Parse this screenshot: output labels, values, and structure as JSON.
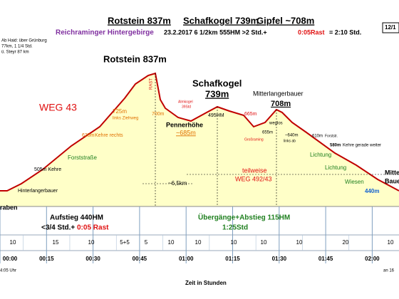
{
  "header": {
    "title_parts": [
      "Rotstein 837m",
      "Schafkogel 739m",
      "Gipfel ~708m"
    ],
    "region": "Reichraminger Hintergebirge",
    "stats": "23.2.2017   6 1/2km   555HM   >2 Std.+",
    "rest": "0:05Rast",
    "total": "= 2:10 Std.",
    "page": "12/1"
  },
  "notes": [
    "Ab Haid: über Grünburg",
    "77km, 1 1/4 Std.",
    "ü. Steyr 87 km"
  ],
  "labels": [
    "WEG 43",
    "Rotstein 837m",
    "RAST",
    "725m",
    "links Ziehweg",
    "635m",
    "Kehre rechts",
    "Forststraße",
    "505m Kehre",
    "Hinterlangerbauer",
    "raben",
    "700m",
    "Almkogel",
    "39Std",
    "Schafkogel",
    "739m",
    "Pennerhöhe",
    "~685m",
    "495HM",
    "665m",
    "Großraming",
    "655m",
    "weglos",
    "Mitterlangerbauer",
    "708m",
    "~640m",
    "links ab",
    "610m",
    "Forststr.",
    "580m",
    "Kehre  gerade weiter",
    "Lichtung",
    "Lichtung",
    "Wiesen",
    "440m",
    "Mitter",
    "Bauer",
    "~6,5km",
    "teilweise",
    "WEG 492/43",
    "Aufstieg 440HM",
    "<3/4 Std.+",
    "0:05 Rast",
    "Übergänge+Abstieg 115HM",
    "1:25Std"
  ],
  "time_axis": {
    "ticks": [
      "00:00",
      "00:15",
      "00:30",
      "00:45",
      "01:00",
      "01:15",
      "01:30",
      "01:45",
      "02:00"
    ],
    "title": "Zeit in Stunden",
    "start": "4:05 Uhr",
    "end": "an 16"
  },
  "segments": [
    "10",
    "15",
    "10",
    "5+5",
    "5",
    "10",
    "10",
    "10",
    "10",
    "10",
    "20",
    "10"
  ]
}
